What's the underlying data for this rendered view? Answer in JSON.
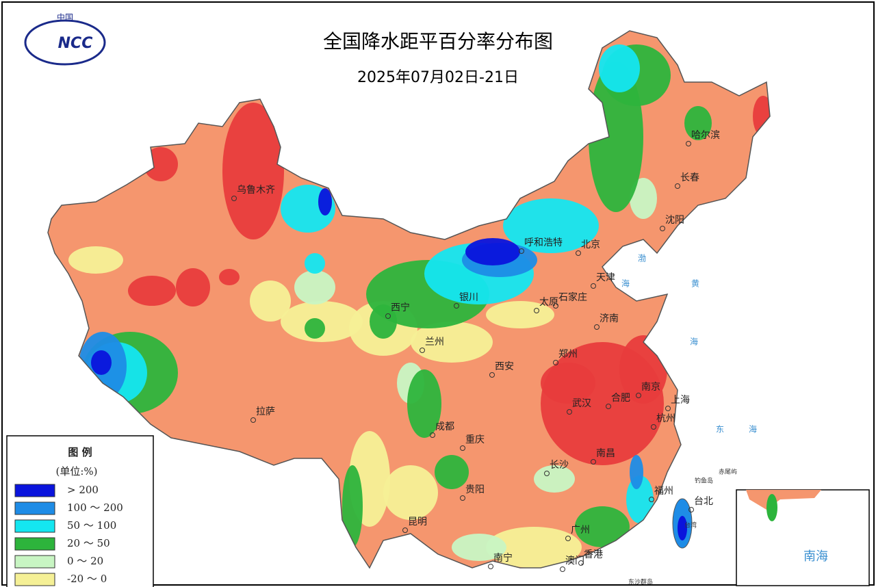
{
  "logo": {
    "top": "中国",
    "text": "NCC"
  },
  "header": {
    "title": "全国降水距平百分率分布图",
    "subtitle": "2025年07月02日-21日"
  },
  "cities": [
    "乌鲁木齐",
    "呼和浩特",
    "北京",
    "天津",
    "哈尔滨",
    "长春",
    "沈阳",
    "银川",
    "太原",
    "石家庄",
    "济南",
    "西宁",
    "兰州",
    "西安",
    "郑州",
    "南京",
    "合肥",
    "上海",
    "武汉",
    "杭州",
    "拉萨",
    "成都",
    "重庆",
    "长沙",
    "南昌",
    "贵阳",
    "福州",
    "台北",
    "昆明",
    "广州",
    "南宁",
    "澳门",
    "香港"
  ],
  "seas": [
    "渤",
    "海",
    "黄",
    "海",
    "东",
    "海"
  ],
  "islands": [
    "钓鱼岛",
    "赤尾屿",
    "台湾",
    "东沙群岛"
  ],
  "inset": {
    "label": "南海"
  },
  "legend": {
    "title": "图 例",
    "unit": "(单位:%)",
    "items": [
      {
        "label": "> 200",
        "color": "#0a14dc"
      },
      {
        "label": "100 ～ 200",
        "color": "#1e8ce6"
      },
      {
        "label": "50 ～ 100",
        "color": "#14e6f0"
      },
      {
        "label": "20 ～ 50",
        "color": "#2db43c"
      },
      {
        "label": "0 ～ 20",
        "color": "#c8f5c3"
      },
      {
        "label": "-20 ～ 0",
        "color": "#f5f096"
      }
    ]
  }
}
